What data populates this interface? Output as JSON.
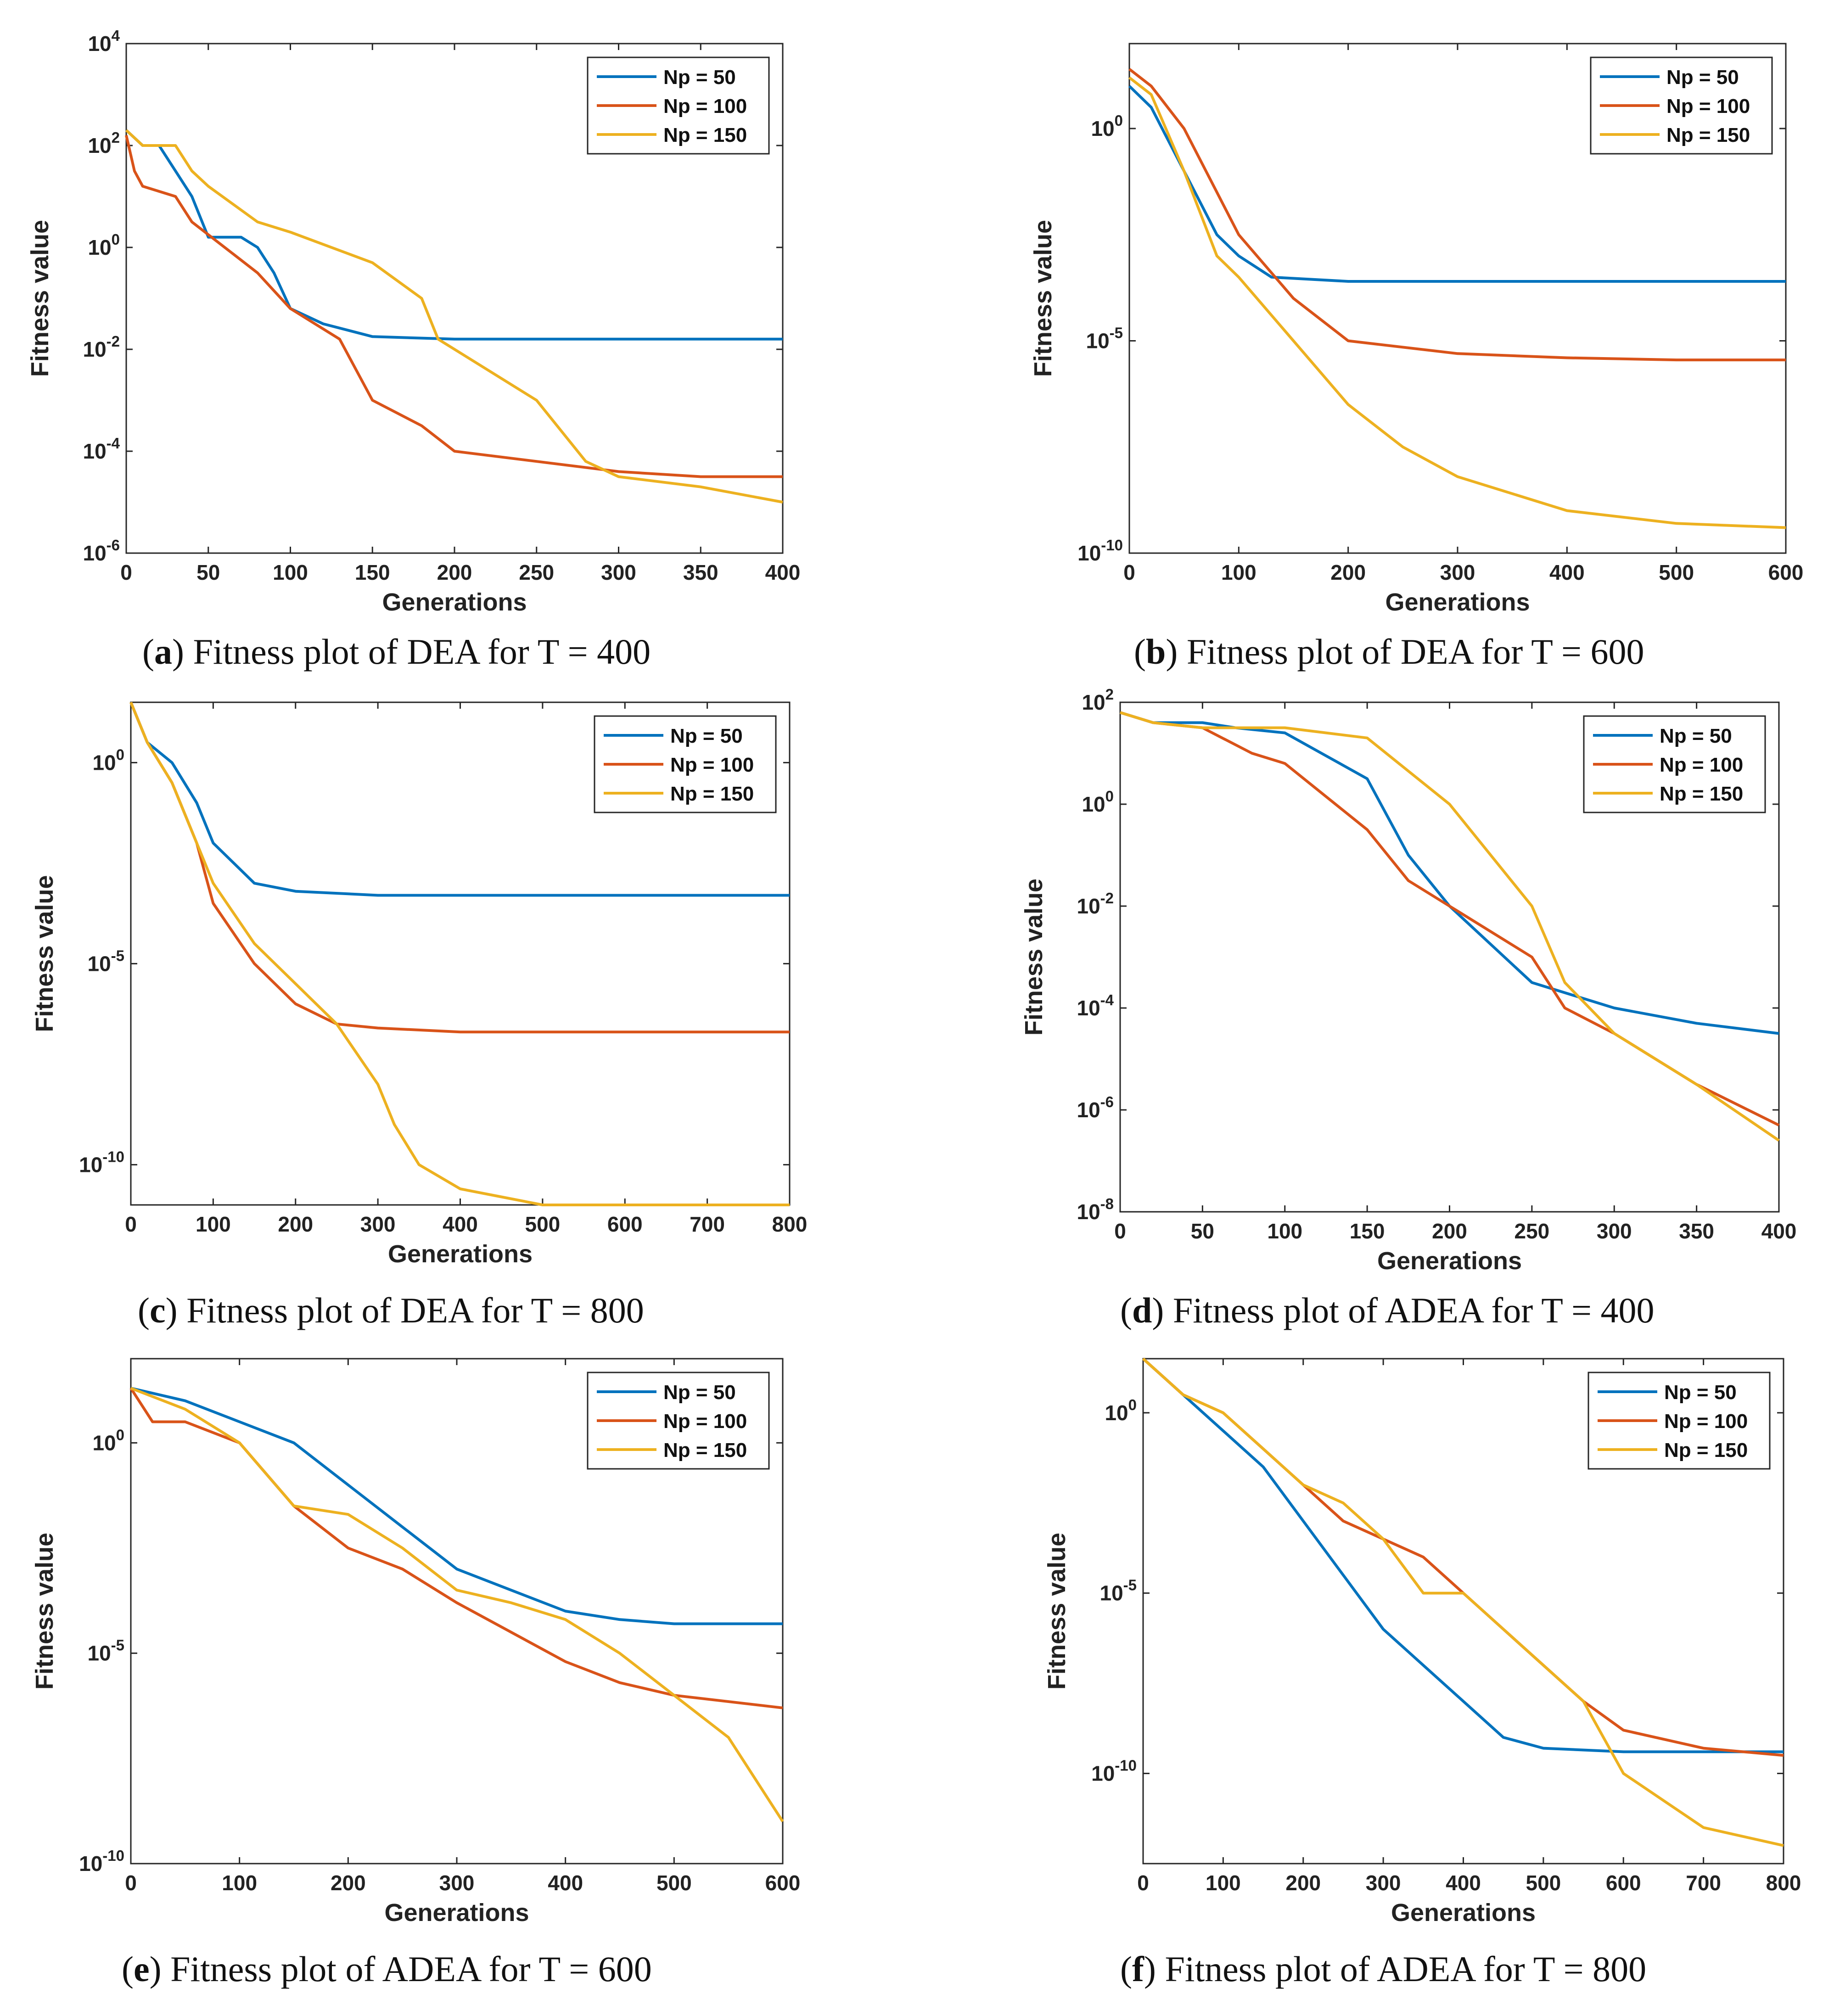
{
  "chart_data": [
    {
      "type": "line",
      "yscale": "log",
      "xlabel": "Generations",
      "ylabel": "Fitness value",
      "xlim": [
        0,
        400
      ],
      "xticks": [
        0,
        50,
        100,
        150,
        200,
        250,
        300,
        350,
        400
      ],
      "ylim_exp": [
        -6,
        4
      ],
      "yticks_exp": [
        -6,
        -4,
        -2,
        0,
        2,
        4
      ],
      "ytick_labels": [
        "10^-6",
        "10^-4",
        "10^-2",
        "10^0",
        "10^2",
        "10^4"
      ],
      "legend": [
        "Np = 50",
        "Np = 100",
        "Np = 150"
      ],
      "legend_position": "top-right",
      "series": [
        {
          "name": "Np = 50",
          "x": [
            0,
            10,
            20,
            30,
            40,
            50,
            70,
            80,
            90,
            100,
            120,
            150,
            200,
            250,
            300,
            350,
            400
          ],
          "y_exp": [
            2.3,
            2.0,
            2.0,
            1.5,
            1.0,
            0.2,
            0.2,
            0.0,
            -0.5,
            -1.2,
            -1.5,
            -1.75,
            -1.8,
            -1.8,
            -1.8,
            -1.8,
            -1.8
          ]
        },
        {
          "name": "Np = 100",
          "x": [
            0,
            5,
            10,
            30,
            40,
            60,
            80,
            100,
            130,
            150,
            180,
            200,
            250,
            300,
            350,
            400
          ],
          "y_exp": [
            2.2,
            1.5,
            1.2,
            1.0,
            0.5,
            0.0,
            -0.5,
            -1.2,
            -1.8,
            -3.0,
            -3.5,
            -4.0,
            -4.2,
            -4.4,
            -4.5,
            -4.5
          ]
        },
        {
          "name": "Np = 150",
          "x": [
            0,
            10,
            30,
            40,
            50,
            80,
            100,
            150,
            180,
            190,
            250,
            280,
            300,
            350,
            400
          ],
          "y_exp": [
            2.3,
            2.0,
            2.0,
            1.5,
            1.2,
            0.5,
            0.3,
            -0.3,
            -1.0,
            -1.8,
            -3.0,
            -4.2,
            -4.5,
            -4.7,
            -5.0
          ]
        }
      ]
    },
    {
      "type": "line",
      "yscale": "log",
      "xlabel": "Generations",
      "ylabel": "Fitness value",
      "xlim": [
        0,
        600
      ],
      "xticks": [
        0,
        100,
        200,
        300,
        400,
        500,
        600
      ],
      "ylim_exp": [
        -10,
        2
      ],
      "yticks_exp": [
        -10,
        -5,
        0
      ],
      "ytick_labels": [
        "10^-10",
        "10^-5",
        "10^0"
      ],
      "legend": [
        "Np = 50",
        "Np = 100",
        "Np = 150"
      ],
      "legend_position": "top-right",
      "series": [
        {
          "name": "Np = 50",
          "x": [
            0,
            20,
            40,
            60,
            80,
            100,
            130,
            200,
            300,
            400,
            500,
            600
          ],
          "y_exp": [
            1.0,
            0.5,
            -0.5,
            -1.5,
            -2.5,
            -3.0,
            -3.5,
            -3.6,
            -3.6,
            -3.6,
            -3.6,
            -3.6
          ]
        },
        {
          "name": "Np = 100",
          "x": [
            0,
            20,
            50,
            80,
            100,
            150,
            200,
            300,
            400,
            500,
            600
          ],
          "y_exp": [
            1.4,
            1.0,
            0.0,
            -1.5,
            -2.5,
            -4.0,
            -5.0,
            -5.3,
            -5.4,
            -5.45,
            -5.45
          ]
        },
        {
          "name": "Np = 150",
          "x": [
            0,
            20,
            50,
            80,
            100,
            150,
            200,
            250,
            300,
            400,
            500,
            600
          ],
          "y_exp": [
            1.2,
            0.8,
            -1.0,
            -3.0,
            -3.5,
            -5.0,
            -6.5,
            -7.5,
            -8.2,
            -9.0,
            -9.3,
            -9.4
          ]
        }
      ]
    },
    {
      "type": "line",
      "yscale": "log",
      "xlabel": "Generations",
      "ylabel": "Fitness value",
      "xlim": [
        0,
        800
      ],
      "xticks": [
        0,
        100,
        200,
        300,
        400,
        500,
        600,
        700,
        800
      ],
      "ylim_exp": [
        -11,
        1.5
      ],
      "yticks_exp": [
        -10,
        -5,
        0
      ],
      "ytick_labels": [
        "10^-10",
        "10^-5",
        "10^0"
      ],
      "legend": [
        "Np = 50",
        "Np = 100",
        "Np = 150"
      ],
      "legend_position": "top-right",
      "series": [
        {
          "name": "Np = 50",
          "x": [
            0,
            20,
            50,
            80,
            100,
            150,
            200,
            300,
            400,
            600,
            800
          ],
          "y_exp": [
            1.5,
            0.5,
            0.0,
            -1.0,
            -2.0,
            -3.0,
            -3.2,
            -3.3,
            -3.3,
            -3.3,
            -3.3
          ]
        },
        {
          "name": "Np = 100",
          "x": [
            0,
            20,
            50,
            80,
            100,
            150,
            200,
            250,
            300,
            400,
            600,
            800
          ],
          "y_exp": [
            1.5,
            0.5,
            -0.5,
            -2.0,
            -3.5,
            -5.0,
            -6.0,
            -6.5,
            -6.6,
            -6.7,
            -6.7,
            -6.7
          ]
        },
        {
          "name": "Np = 150",
          "x": [
            0,
            20,
            50,
            100,
            150,
            200,
            250,
            300,
            320,
            350,
            400,
            450,
            500,
            600,
            800
          ],
          "y_exp": [
            1.5,
            0.5,
            -0.5,
            -3.0,
            -4.5,
            -5.5,
            -6.5,
            -8.0,
            -9.0,
            -10.0,
            -10.6,
            -10.8,
            -11.0,
            -11.0,
            -11.0
          ]
        }
      ]
    },
    {
      "type": "line",
      "yscale": "log",
      "xlabel": "Generations",
      "ylabel": "Fitness value",
      "xlim": [
        0,
        400
      ],
      "xticks": [
        0,
        50,
        100,
        150,
        200,
        250,
        300,
        350,
        400
      ],
      "ylim_exp": [
        -8,
        2
      ],
      "yticks_exp": [
        -8,
        -6,
        -4,
        -2,
        0,
        2
      ],
      "ytick_labels": [
        "10^-8",
        "10^-6",
        "10^-4",
        "10^-2",
        "10^0",
        "10^2"
      ],
      "legend": [
        "Np = 50",
        "Np = 100",
        "Np = 150"
      ],
      "legend_position": "top-right",
      "series": [
        {
          "name": "Np = 50",
          "x": [
            0,
            20,
            50,
            70,
            100,
            150,
            175,
            200,
            250,
            300,
            350,
            400
          ],
          "y_exp": [
            1.8,
            1.6,
            1.6,
            1.5,
            1.4,
            0.5,
            -1.0,
            -2.0,
            -3.5,
            -4.0,
            -4.3,
            -4.5
          ]
        },
        {
          "name": "Np = 100",
          "x": [
            0,
            20,
            50,
            80,
            100,
            150,
            175,
            200,
            250,
            270,
            300,
            350,
            400
          ],
          "y_exp": [
            1.8,
            1.6,
            1.5,
            1.0,
            0.8,
            -0.5,
            -1.5,
            -2.0,
            -3.0,
            -4.0,
            -4.5,
            -5.5,
            -6.3
          ]
        },
        {
          "name": "Np = 150",
          "x": [
            0,
            20,
            50,
            100,
            150,
            200,
            250,
            270,
            300,
            350,
            400
          ],
          "y_exp": [
            1.8,
            1.6,
            1.5,
            1.5,
            1.3,
            0.0,
            -2.0,
            -3.5,
            -4.5,
            -5.5,
            -6.6
          ]
        }
      ]
    },
    {
      "type": "line",
      "yscale": "log",
      "xlabel": "Generations",
      "ylabel": "Fitness value",
      "xlim": [
        0,
        600
      ],
      "xticks": [
        0,
        100,
        200,
        300,
        400,
        500,
        600
      ],
      "ylim_exp": [
        -10,
        2
      ],
      "yticks_exp": [
        -10,
        -5,
        0
      ],
      "ytick_labels": [
        "10^-10",
        "10^-5",
        "10^0"
      ],
      "legend": [
        "Np = 50",
        "Np = 100",
        "Np = 150"
      ],
      "legend_position": "top-right",
      "series": [
        {
          "name": "Np = 50",
          "x": [
            0,
            50,
            100,
            150,
            200,
            250,
            300,
            350,
            400,
            450,
            500,
            600
          ],
          "y_exp": [
            1.3,
            1.0,
            0.5,
            0.0,
            -1.0,
            -2.0,
            -3.0,
            -3.5,
            -4.0,
            -4.2,
            -4.3,
            -4.3
          ]
        },
        {
          "name": "Np = 100",
          "x": [
            0,
            20,
            50,
            100,
            150,
            200,
            250,
            300,
            350,
            400,
            450,
            500,
            600
          ],
          "y_exp": [
            1.3,
            0.5,
            0.5,
            0.0,
            -1.5,
            -2.5,
            -3.0,
            -3.8,
            -4.5,
            -5.2,
            -5.7,
            -6.0,
            -6.3
          ]
        },
        {
          "name": "Np = 150",
          "x": [
            0,
            50,
            100,
            150,
            200,
            250,
            300,
            350,
            400,
            450,
            500,
            550,
            600
          ],
          "y_exp": [
            1.3,
            0.8,
            0.0,
            -1.5,
            -1.7,
            -2.5,
            -3.5,
            -3.8,
            -4.2,
            -5.0,
            -6.0,
            -7.0,
            -9.0
          ]
        }
      ]
    },
    {
      "type": "line",
      "yscale": "log",
      "xlabel": "Generations",
      "ylabel": "Fitness value",
      "xlim": [
        0,
        800
      ],
      "xticks": [
        0,
        100,
        200,
        300,
        400,
        500,
        600,
        700,
        800
      ],
      "ylim_exp": [
        -12.5,
        1.5
      ],
      "yticks_exp": [
        -10,
        -5,
        0
      ],
      "ytick_labels": [
        "10^-10",
        "10^-5",
        "10^0"
      ],
      "legend": [
        "Np = 50",
        "Np = 100",
        "Np = 150"
      ],
      "legend_position": "top-right",
      "series": [
        {
          "name": "Np = 50",
          "x": [
            0,
            50,
            100,
            150,
            200,
            250,
            300,
            350,
            400,
            450,
            500,
            600,
            700,
            800
          ],
          "y_exp": [
            1.5,
            0.5,
            -0.5,
            -1.5,
            -3.0,
            -4.5,
            -6.0,
            -7.0,
            -8.0,
            -9.0,
            -9.3,
            -9.4,
            -9.4,
            -9.4
          ]
        },
        {
          "name": "Np = 100",
          "x": [
            0,
            50,
            100,
            150,
            200,
            250,
            300,
            350,
            400,
            450,
            500,
            550,
            600,
            700,
            800
          ],
          "y_exp": [
            1.5,
            0.5,
            0.0,
            -1.0,
            -2.0,
            -3.0,
            -3.5,
            -4.0,
            -5.0,
            -6.0,
            -7.0,
            -8.0,
            -8.8,
            -9.3,
            -9.5
          ]
        },
        {
          "name": "Np = 150",
          "x": [
            0,
            50,
            100,
            150,
            200,
            250,
            300,
            350,
            400,
            450,
            500,
            550,
            600,
            700,
            800
          ],
          "y_exp": [
            1.5,
            0.5,
            0.0,
            -1.0,
            -2.0,
            -2.5,
            -3.5,
            -5.0,
            -5.0,
            -6.0,
            -7.0,
            -8.0,
            -10.0,
            -11.5,
            -12.0
          ]
        }
      ]
    }
  ],
  "captions": [
    {
      "letter": "a",
      "text": ") Fitness plot of DEA for T = 400"
    },
    {
      "letter": "b",
      "text": ") Fitness plot of DEA for T = 600"
    },
    {
      "letter": "c",
      "text": ") Fitness plot of DEA for T = 800"
    },
    {
      "letter": "d",
      "text": ") Fitness plot of ADEA for T = 400"
    },
    {
      "letter": "e",
      "text": ") Fitness plot of ADEA for T = 600"
    },
    {
      "letter": "f",
      "text": ") Fitness plot of ADEA for T = 800"
    }
  ],
  "colors": {
    "Np = 50": "#0072BD",
    "Np = 100": "#D95319",
    "Np = 150": "#EDB120"
  }
}
